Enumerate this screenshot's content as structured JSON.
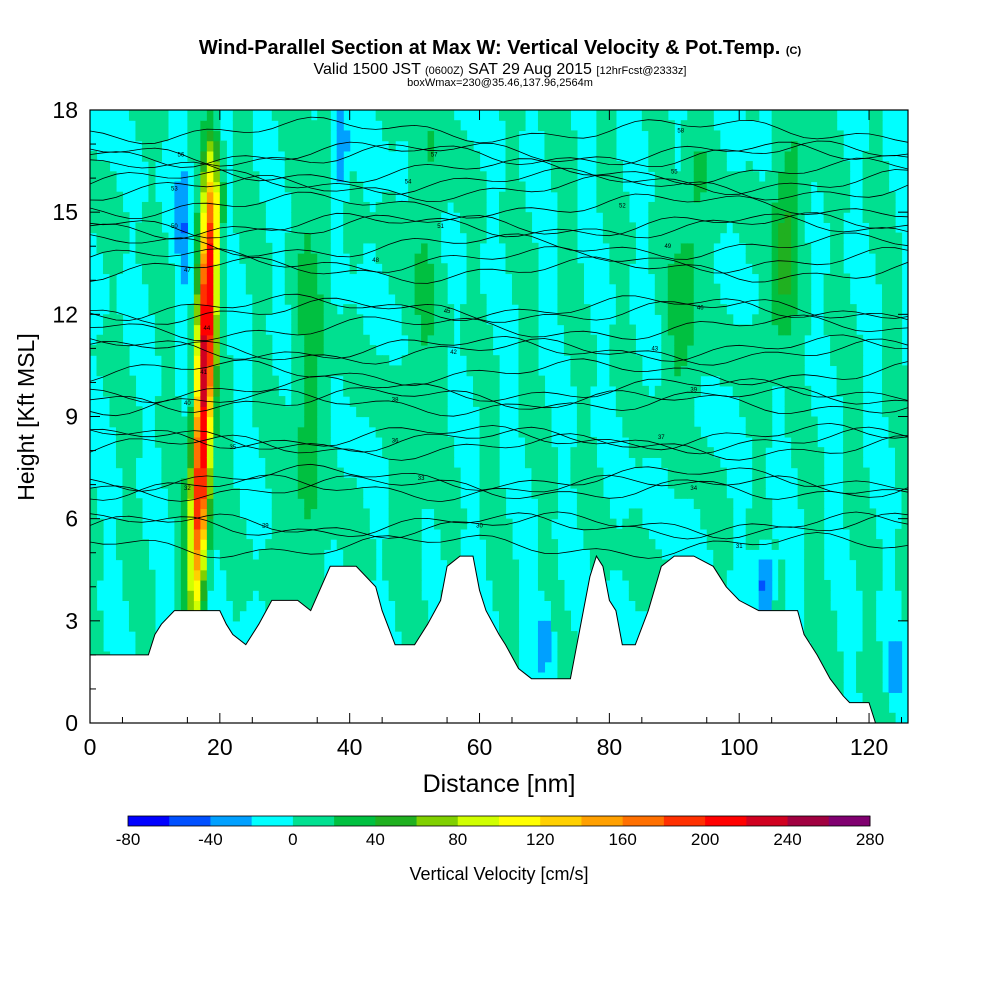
{
  "header": {
    "title": "Wind-Parallel Section at Max W: Vertical Velocity & Pot.Temp.",
    "title_mark": "(C)",
    "subtitle_pre": "Valid 1500 JST",
    "subtitle_small": "(0600Z)",
    "subtitle_mid": "SAT 29 Aug 2015",
    "subtitle_fcst": "[12hrFcst@2333z]",
    "subtitle2": "boxWmax=230@35.46,137.96,2564m"
  },
  "chart_data": {
    "type": "heatmap",
    "xlabel": "Distance [nm]",
    "ylabel": "Height [Kft MSL]",
    "xlim": [
      0,
      126
    ],
    "ylim": [
      0,
      18
    ],
    "x_ticks": [
      "0",
      "20",
      "40",
      "60",
      "80",
      "100",
      "120"
    ],
    "y_ticks": [
      "0",
      "3",
      "6",
      "9",
      "12",
      "15",
      "18"
    ],
    "colorbar": {
      "label": "Vertical Velocity [cm/s]",
      "range": [
        -80,
        280
      ],
      "step": 20,
      "tick_labels": [
        "-80",
        "-40",
        "0",
        "40",
        "80",
        "120",
        "160",
        "200",
        "240",
        "280"
      ],
      "colors": [
        "#0000ff",
        "#0050ff",
        "#00a0ff",
        "#00ffff",
        "#00e090",
        "#00c040",
        "#20b020",
        "#80d000",
        "#d0ff00",
        "#ffff00",
        "#ffd000",
        "#ffa000",
        "#ff7000",
        "#ff3000",
        "#ff0000",
        "#d00020",
        "#a00040",
        "#800070"
      ]
    },
    "background_w": 0,
    "updrafts": [
      {
        "x": 17.5,
        "y_bottom": 3.5,
        "y_top": 15.5,
        "max_w": 230,
        "peak_height": 10
      },
      {
        "x": 107,
        "y_bottom": 11,
        "y_top": 17,
        "max_w": 40,
        "peak_height": 14
      },
      {
        "x": 92,
        "y_bottom": 10,
        "y_top": 17,
        "max_w": 30,
        "peak_height": 13
      },
      {
        "x": 34,
        "y_bottom": 4,
        "y_top": 18,
        "max_w": 25,
        "peak_height": 10
      },
      {
        "x": 51,
        "y_bottom": 4,
        "y_top": 17,
        "max_w": 20,
        "peak_height": 12
      }
    ],
    "downdrafts": [
      {
        "x": 14.5,
        "y_bottom": 13,
        "y_top": 17,
        "min_w": -30
      },
      {
        "x": 38.5,
        "y_bottom": 15.5,
        "y_top": 18,
        "min_w": -50
      },
      {
        "x": 104,
        "y_bottom": 3.5,
        "y_top": 4.8,
        "min_w": -60
      },
      {
        "x": 70,
        "y_bottom": 1.8,
        "y_top": 3.2,
        "min_w": -40
      },
      {
        "x": 124,
        "y_bottom": 1.0,
        "y_top": 2.0,
        "min_w": -30
      }
    ],
    "terrain_height_kft": [
      [
        0,
        2.0
      ],
      [
        9,
        2.0
      ],
      [
        10,
        2.6
      ],
      [
        11,
        2.9
      ],
      [
        13,
        3.3
      ],
      [
        20,
        3.3
      ],
      [
        21,
        2.9
      ],
      [
        22,
        2.6
      ],
      [
        24,
        2.3
      ],
      [
        26,
        2.9
      ],
      [
        28,
        3.6
      ],
      [
        32,
        3.6
      ],
      [
        34,
        3.3
      ],
      [
        37,
        4.6
      ],
      [
        41,
        4.6
      ],
      [
        44,
        4.0
      ],
      [
        45,
        3.3
      ],
      [
        47,
        2.3
      ],
      [
        50,
        2.3
      ],
      [
        52,
        2.9
      ],
      [
        54,
        3.6
      ],
      [
        55,
        4.6
      ],
      [
        57,
        4.9
      ],
      [
        59,
        4.9
      ],
      [
        60,
        3.9
      ],
      [
        61,
        3.3
      ],
      [
        63,
        2.6
      ],
      [
        64,
        2.3
      ],
      [
        66,
        1.6
      ],
      [
        68,
        1.3
      ],
      [
        74,
        1.3
      ],
      [
        75,
        2.3
      ],
      [
        76,
        3.3
      ],
      [
        77,
        4.3
      ],
      [
        78,
        4.9
      ],
      [
        79,
        4.6
      ],
      [
        80,
        3.6
      ],
      [
        81,
        3.3
      ],
      [
        82,
        2.3
      ],
      [
        84,
        2.3
      ],
      [
        86,
        3.3
      ],
      [
        88,
        4.6
      ],
      [
        90,
        4.9
      ],
      [
        93,
        4.9
      ],
      [
        96,
        4.6
      ],
      [
        98,
        4.0
      ],
      [
        100,
        3.6
      ],
      [
        103,
        3.3
      ],
      [
        109,
        3.3
      ],
      [
        110,
        2.6
      ],
      [
        112,
        2.0
      ],
      [
        114,
        1.3
      ],
      [
        116,
        0.8
      ],
      [
        117,
        0.6
      ],
      [
        120,
        0.6
      ],
      [
        121,
        0
      ],
      [
        126,
        0
      ]
    ],
    "theta_contours": [
      {
        "label": "29",
        "x": 27,
        "y": 5.8
      },
      {
        "label": "30",
        "x": 60,
        "y": 5.8
      },
      {
        "label": "31",
        "x": 100,
        "y": 5.2
      },
      {
        "label": "32",
        "x": 15,
        "y": 6.9
      },
      {
        "label": "33",
        "x": 51,
        "y": 7.2
      },
      {
        "label": "34",
        "x": 93,
        "y": 6.9
      },
      {
        "label": "35",
        "x": 22,
        "y": 8.1
      },
      {
        "label": "36",
        "x": 47,
        "y": 8.3
      },
      {
        "label": "37",
        "x": 88,
        "y": 8.4
      },
      {
        "label": "38",
        "x": 47,
        "y": 9.5
      },
      {
        "label": "39",
        "x": 93,
        "y": 9.8
      },
      {
        "label": "40",
        "x": 15,
        "y": 9.4
      },
      {
        "label": "41",
        "x": 17.5,
        "y": 10.3
      },
      {
        "label": "42",
        "x": 56,
        "y": 10.9
      },
      {
        "label": "43",
        "x": 87,
        "y": 11.0
      },
      {
        "label": "44",
        "x": 18,
        "y": 11.6
      },
      {
        "label": "45",
        "x": 55,
        "y": 12.1
      },
      {
        "label": "46",
        "x": 94,
        "y": 12.2
      },
      {
        "label": "47",
        "x": 15,
        "y": 13.3
      },
      {
        "label": "48",
        "x": 44,
        "y": 13.6
      },
      {
        "label": "49",
        "x": 89,
        "y": 14.0
      },
      {
        "label": "50",
        "x": 13,
        "y": 14.6
      },
      {
        "label": "51",
        "x": 54,
        "y": 14.6
      },
      {
        "label": "52",
        "x": 82,
        "y": 15.2
      },
      {
        "label": "53",
        "x": 13,
        "y": 15.7
      },
      {
        "label": "54",
        "x": 49,
        "y": 15.9
      },
      {
        "label": "55",
        "x": 90,
        "y": 16.2
      },
      {
        "label": "56",
        "x": 14,
        "y": 16.7
      },
      {
        "label": "57",
        "x": 53,
        "y": 16.7
      },
      {
        "label": "58",
        "x": 91,
        "y": 17.4
      }
    ]
  }
}
